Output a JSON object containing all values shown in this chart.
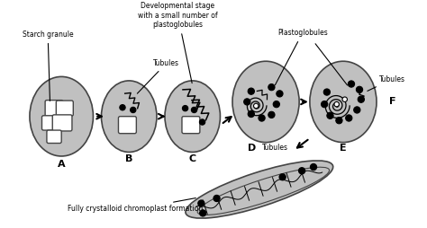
{
  "bg_color": "#ffffff",
  "ellipse_color": "#c0c0c0",
  "ellipse_edge": "#444444",
  "black": "#000000",
  "white": "#ffffff",
  "label_starch": "Starch granule",
  "label_dev": "Developmental stage\nwith a small number of\nplastoglobules",
  "label_plastoglobules": "Plastoglobules",
  "label_tubules_B": "Tubules",
  "label_tubules_D": "Tubules",
  "label_tubules_E": "Tubules",
  "label_crystalloid": "Fully crystalloid chromoplast formation"
}
